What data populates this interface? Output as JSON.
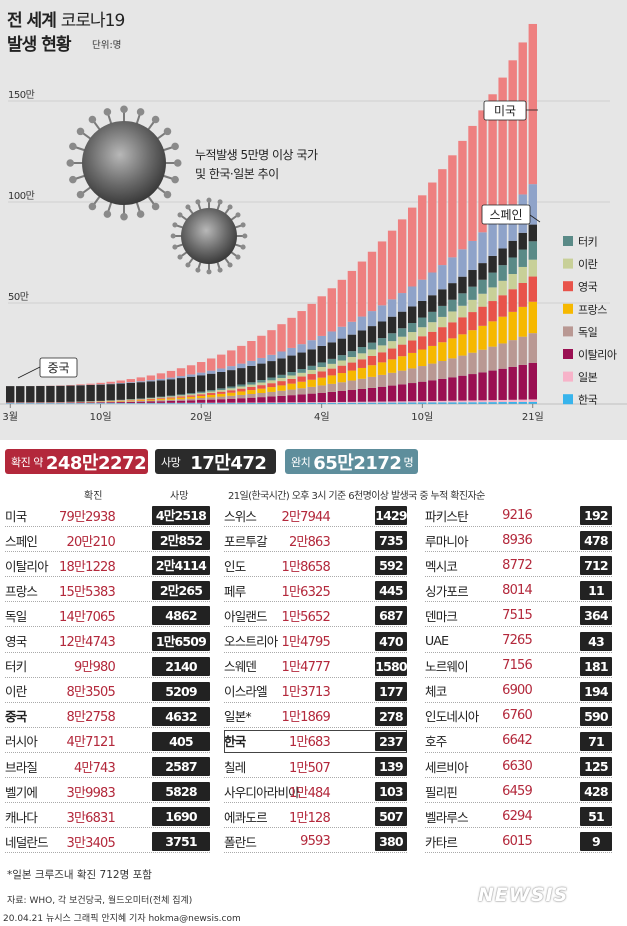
{
  "header": {
    "title_line1_bold": "전 세계",
    "title_line1_light": "코로나19",
    "title_line2": "발생 현황",
    "unit": "단위:명"
  },
  "chart_data": {
    "type": "stacked-bar",
    "subtitle_line1": "누적발생 5만명 이상 국가",
    "subtitle_line2": "및 한국·일본 추이",
    "y_ticks": [
      {
        "value": 500000,
        "label": "50만"
      },
      {
        "value": 1000000,
        "label": "100만"
      },
      {
        "value": 1500000,
        "label": "150만"
      }
    ],
    "ylim": [
      0,
      2000000
    ],
    "x_ticks": [
      {
        "index": 0,
        "label": "3월"
      },
      {
        "index": 9,
        "label": "10일"
      },
      {
        "index": 19,
        "label": "20일"
      },
      {
        "index": 31,
        "label": "4일"
      },
      {
        "index": 41,
        "label": "10일"
      },
      {
        "index": 52,
        "label": "21일"
      }
    ],
    "legend": [
      {
        "name": "터키",
        "color": "#5a8a87"
      },
      {
        "name": "이란",
        "color": "#c8d098"
      },
      {
        "name": "영국",
        "color": "#e8534a"
      },
      {
        "name": "프랑스",
        "color": "#f6b800"
      },
      {
        "name": "독일",
        "color": "#b99893"
      },
      {
        "name": "이탈리아",
        "color": "#9a0f52"
      },
      {
        "name": "일본",
        "color": "#f7b3c9"
      },
      {
        "name": "한국",
        "color": "#38b4ec"
      }
    ],
    "callouts": {
      "us": "미국",
      "spain": "스페인",
      "china": "중국"
    },
    "series": [
      {
        "name": "한국",
        "color": "#38b4ec",
        "start": 4000,
        "end": 10683
      },
      {
        "name": "일본",
        "color": "#f7b3c9",
        "start": 1000,
        "end": 11869
      },
      {
        "name": "이탈리아",
        "color": "#9a0f52",
        "start": 1700,
        "end": 181228
      },
      {
        "name": "독일",
        "color": "#b99893",
        "start": 150,
        "end": 147065
      },
      {
        "name": "프랑스",
        "color": "#f6b800",
        "start": 130,
        "end": 155383
      },
      {
        "name": "영국",
        "color": "#e8534a",
        "start": 36,
        "end": 124743
      },
      {
        "name": "이란",
        "color": "#c8d098",
        "start": 1500,
        "end": 83505
      },
      {
        "name": "터키",
        "color": "#5a8a87",
        "start": 0,
        "end": 90980
      },
      {
        "name": "중국",
        "color": "#2b2b2b",
        "start": 80000,
        "end": 82758
      },
      {
        "name": "스페인",
        "color": "#8fa3c9",
        "start": 84,
        "end": 200210
      },
      {
        "name": "미국",
        "color": "#ee8080",
        "start": 75,
        "end": 792938
      }
    ],
    "days": 53
  },
  "summary": {
    "confirmed_label": "확진 약",
    "confirmed": "248만2272",
    "deaths_label": "사망",
    "deaths": "17만472",
    "recovered_label": "완치",
    "recovered": "65만2172",
    "recovered_unit": "명"
  },
  "table": {
    "header_confirmed": "확진",
    "header_deaths": "사망",
    "note": "21일(한국시간) 오후 3시 기준 6천명이상 발생국 중 누적 확진자순",
    "col1": [
      {
        "name": "미국",
        "confirmed": "79만2938",
        "deaths": "4만2518"
      },
      {
        "name": "스페인",
        "confirmed": "20만210",
        "deaths": "2만852"
      },
      {
        "name": "이탈리아",
        "confirmed": "18만1228",
        "deaths": "2만4114"
      },
      {
        "name": "프랑스",
        "confirmed": "15만5383",
        "deaths": "2만265"
      },
      {
        "name": "독일",
        "confirmed": "14만7065",
        "deaths": "4862"
      },
      {
        "name": "영국",
        "confirmed": "12만4743",
        "deaths": "1만6509"
      },
      {
        "name": "터키",
        "confirmed": "9만980",
        "deaths": "2140"
      },
      {
        "name": "이란",
        "confirmed": "8만3505",
        "deaths": "5209"
      },
      {
        "name": "중국",
        "confirmed": "8만2758",
        "deaths": "4632"
      },
      {
        "name": "러시아",
        "confirmed": "4만7121",
        "deaths": "405"
      },
      {
        "name": "브라질",
        "confirmed": "4만743",
        "deaths": "2587"
      },
      {
        "name": "벨기에",
        "confirmed": "3만9983",
        "deaths": "5828"
      },
      {
        "name": "캐나다",
        "confirmed": "3만6831",
        "deaths": "1690"
      },
      {
        "name": "네덜란드",
        "confirmed": "3만3405",
        "deaths": "3751"
      }
    ],
    "col2": [
      {
        "name": "스위스",
        "confirmed": "2만7944",
        "deaths": "1429"
      },
      {
        "name": "포르투갈",
        "confirmed": "2만863",
        "deaths": "735"
      },
      {
        "name": "인도",
        "confirmed": "1만8658",
        "deaths": "592"
      },
      {
        "name": "페루",
        "confirmed": "1만6325",
        "deaths": "445"
      },
      {
        "name": "아일랜드",
        "confirmed": "1만5652",
        "deaths": "687"
      },
      {
        "name": "오스트리아",
        "confirmed": "1만4795",
        "deaths": "470"
      },
      {
        "name": "스웨덴",
        "confirmed": "1만4777",
        "deaths": "1580"
      },
      {
        "name": "이스라엘",
        "confirmed": "1만3713",
        "deaths": "177"
      },
      {
        "name": "일본*",
        "confirmed": "1만1869",
        "deaths": "278"
      },
      {
        "name": "한국",
        "confirmed": "1만683",
        "deaths": "237"
      },
      {
        "name": "칠레",
        "confirmed": "1만507",
        "deaths": "139"
      },
      {
        "name": "사우디아라비아",
        "confirmed": "1만484",
        "deaths": "103"
      },
      {
        "name": "에콰도르",
        "confirmed": "1만128",
        "deaths": "507"
      },
      {
        "name": "폴란드",
        "confirmed": "9593",
        "deaths": "380"
      }
    ],
    "col3": [
      {
        "name": "파키스탄",
        "confirmed": "9216",
        "deaths": "192"
      },
      {
        "name": "루마니아",
        "confirmed": "8936",
        "deaths": "478"
      },
      {
        "name": "멕시코",
        "confirmed": "8772",
        "deaths": "712"
      },
      {
        "name": "싱가포르",
        "confirmed": "8014",
        "deaths": "11"
      },
      {
        "name": "덴마크",
        "confirmed": "7515",
        "deaths": "364"
      },
      {
        "name": "UAE",
        "confirmed": "7265",
        "deaths": "43"
      },
      {
        "name": "노르웨이",
        "confirmed": "7156",
        "deaths": "181"
      },
      {
        "name": "체코",
        "confirmed": "6900",
        "deaths": "194"
      },
      {
        "name": "인도네시아",
        "confirmed": "6760",
        "deaths": "590"
      },
      {
        "name": "호주",
        "confirmed": "6642",
        "deaths": "71"
      },
      {
        "name": "세르비아",
        "confirmed": "6630",
        "deaths": "125"
      },
      {
        "name": "필리핀",
        "confirmed": "6459",
        "deaths": "428"
      },
      {
        "name": "벨라루스",
        "confirmed": "6294",
        "deaths": "51"
      },
      {
        "name": "카타르",
        "confirmed": "6015",
        "deaths": "9"
      }
    ]
  },
  "footer": {
    "note": "*일본 크루즈내 확진 712명 포함",
    "source": "자료: WHO, 각 보건당국, 월드오미터(전체 집계)",
    "credit": "20.04.21 뉴시스 그래픽 안지혜 기자 hokma@newsis.com",
    "logo": "NEWSIS"
  }
}
